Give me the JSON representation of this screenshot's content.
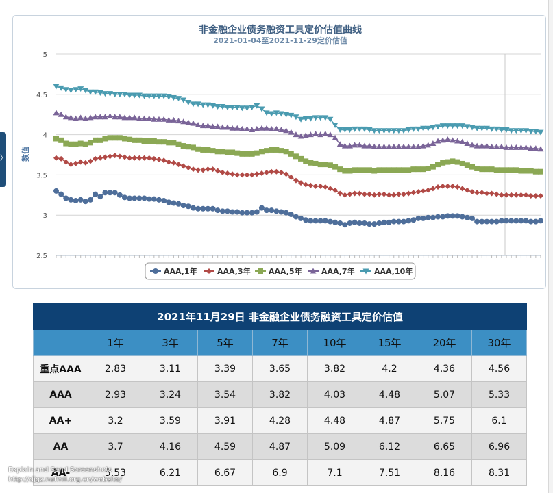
{
  "chart_data": {
    "type": "line",
    "title": "非金融企业债务融资工具定价估值曲线",
    "subtitle": "2021-01-04至2021-11-29定价估值",
    "ylabel": "数值",
    "ylim": [
      2.5,
      5
    ],
    "yticks": [
      "2.5",
      "3",
      "3.5",
      "4",
      "4.5",
      "5"
    ],
    "series": [
      {
        "name": "AAA,1年",
        "color": "#4e6e9a",
        "marker": "circle",
        "values": [
          3.3,
          3.26,
          3.21,
          3.19,
          3.18,
          3.19,
          3.17,
          3.19,
          3.26,
          3.23,
          3.28,
          3.28,
          3.28,
          3.25,
          3.22,
          3.21,
          3.21,
          3.21,
          3.21,
          3.2,
          3.2,
          3.19,
          3.18,
          3.16,
          3.15,
          3.14,
          3.12,
          3.11,
          3.09,
          3.08,
          3.08,
          3.08,
          3.08,
          3.06,
          3.05,
          3.05,
          3.04,
          3.04,
          3.03,
          3.03,
          3.03,
          3.04,
          3.09,
          3.06,
          3.06,
          3.05,
          3.04,
          3.03,
          3.01,
          2.98,
          2.96,
          2.94,
          2.93,
          2.93,
          2.93,
          2.93,
          2.92,
          2.91,
          2.9,
          2.88,
          2.9,
          2.91,
          2.9,
          2.9,
          2.89,
          2.89,
          2.9,
          2.91,
          2.91,
          2.92,
          2.92,
          2.92,
          2.93,
          2.94,
          2.96,
          2.96,
          2.97,
          2.97,
          2.98,
          2.98,
          2.99,
          2.99,
          2.99,
          2.98,
          2.97,
          2.96,
          2.92,
          2.92,
          2.92,
          2.92,
          2.92,
          2.93,
          2.93,
          2.93,
          2.93,
          2.93,
          2.93,
          2.92,
          2.92,
          2.93
        ]
      },
      {
        "name": "AAA,3年",
        "color": "#b14a46",
        "marker": "diamond",
        "values": [
          3.71,
          3.7,
          3.66,
          3.63,
          3.64,
          3.66,
          3.65,
          3.67,
          3.7,
          3.71,
          3.72,
          3.73,
          3.74,
          3.73,
          3.72,
          3.71,
          3.71,
          3.71,
          3.71,
          3.71,
          3.7,
          3.69,
          3.68,
          3.66,
          3.65,
          3.63,
          3.61,
          3.59,
          3.57,
          3.56,
          3.56,
          3.57,
          3.57,
          3.55,
          3.53,
          3.52,
          3.51,
          3.5,
          3.5,
          3.5,
          3.5,
          3.51,
          3.52,
          3.53,
          3.54,
          3.54,
          3.53,
          3.51,
          3.47,
          3.43,
          3.4,
          3.38,
          3.37,
          3.36,
          3.36,
          3.35,
          3.33,
          3.31,
          3.27,
          3.25,
          3.26,
          3.27,
          3.27,
          3.26,
          3.26,
          3.25,
          3.26,
          3.26,
          3.25,
          3.25,
          3.26,
          3.26,
          3.27,
          3.28,
          3.29,
          3.3,
          3.31,
          3.33,
          3.35,
          3.36,
          3.36,
          3.36,
          3.35,
          3.33,
          3.31,
          3.29,
          3.28,
          3.28,
          3.27,
          3.27,
          3.26,
          3.25,
          3.25,
          3.25,
          3.25,
          3.25,
          3.25,
          3.24,
          3.24,
          3.24
        ]
      },
      {
        "name": "AAA,5年",
        "color": "#8ba854",
        "marker": "square",
        "values": [
          3.95,
          3.93,
          3.89,
          3.88,
          3.88,
          3.89,
          3.88,
          3.9,
          3.93,
          3.93,
          3.95,
          3.96,
          3.96,
          3.96,
          3.95,
          3.94,
          3.93,
          3.93,
          3.92,
          3.92,
          3.92,
          3.91,
          3.91,
          3.9,
          3.9,
          3.88,
          3.86,
          3.85,
          3.84,
          3.82,
          3.81,
          3.81,
          3.8,
          3.79,
          3.79,
          3.78,
          3.78,
          3.77,
          3.76,
          3.76,
          3.76,
          3.77,
          3.79,
          3.8,
          3.81,
          3.81,
          3.8,
          3.79,
          3.76,
          3.73,
          3.7,
          3.67,
          3.65,
          3.64,
          3.63,
          3.63,
          3.62,
          3.6,
          3.57,
          3.55,
          3.55,
          3.56,
          3.56,
          3.56,
          3.56,
          3.55,
          3.56,
          3.56,
          3.56,
          3.56,
          3.56,
          3.56,
          3.56,
          3.57,
          3.57,
          3.57,
          3.58,
          3.6,
          3.63,
          3.65,
          3.66,
          3.67,
          3.66,
          3.64,
          3.62,
          3.6,
          3.58,
          3.57,
          3.57,
          3.57,
          3.56,
          3.56,
          3.56,
          3.56,
          3.56,
          3.55,
          3.55,
          3.55,
          3.54,
          3.54
        ]
      },
      {
        "name": "AAA,7年",
        "color": "#7a6498",
        "marker": "triangle-up",
        "values": [
          4.27,
          4.25,
          4.22,
          4.21,
          4.2,
          4.21,
          4.2,
          4.21,
          4.22,
          4.22,
          4.22,
          4.23,
          4.22,
          4.22,
          4.21,
          4.21,
          4.21,
          4.2,
          4.2,
          4.2,
          4.19,
          4.19,
          4.19,
          4.18,
          4.18,
          4.17,
          4.16,
          4.15,
          4.14,
          4.12,
          4.11,
          4.11,
          4.1,
          4.1,
          4.09,
          4.09,
          4.08,
          4.08,
          4.07,
          4.07,
          4.06,
          4.07,
          4.08,
          4.08,
          4.07,
          4.07,
          4.06,
          4.05,
          4.03,
          4.0,
          3.98,
          3.99,
          4.0,
          4.01,
          4.0,
          4.01,
          4.0,
          3.96,
          3.88,
          3.86,
          3.86,
          3.87,
          3.87,
          3.86,
          3.86,
          3.85,
          3.85,
          3.85,
          3.85,
          3.85,
          3.85,
          3.85,
          3.85,
          3.85,
          3.85,
          3.86,
          3.87,
          3.89,
          3.92,
          3.93,
          3.94,
          3.93,
          3.92,
          3.91,
          3.89,
          3.87,
          3.86,
          3.86,
          3.86,
          3.85,
          3.85,
          3.85,
          3.84,
          3.84,
          3.84,
          3.84,
          3.84,
          3.83,
          3.83,
          3.82
        ]
      },
      {
        "name": "AAA,10年",
        "color": "#4a9bb0",
        "marker": "triangle-down",
        "values": [
          4.6,
          4.58,
          4.56,
          4.55,
          4.56,
          4.57,
          4.55,
          4.53,
          4.53,
          4.52,
          4.51,
          4.51,
          4.5,
          4.5,
          4.5,
          4.49,
          4.49,
          4.49,
          4.48,
          4.48,
          4.48,
          4.48,
          4.48,
          4.47,
          4.46,
          4.45,
          4.43,
          4.4,
          4.38,
          4.38,
          4.37,
          4.37,
          4.36,
          4.35,
          4.35,
          4.34,
          4.34,
          4.34,
          4.33,
          4.33,
          4.34,
          4.36,
          4.32,
          4.27,
          4.26,
          4.27,
          4.26,
          4.25,
          4.24,
          4.22,
          4.19,
          4.2,
          4.2,
          4.21,
          4.21,
          4.21,
          4.19,
          4.12,
          4.06,
          4.06,
          4.06,
          4.07,
          4.07,
          4.07,
          4.06,
          4.05,
          4.05,
          4.05,
          4.05,
          4.05,
          4.05,
          4.05,
          4.06,
          4.07,
          4.07,
          4.08,
          4.08,
          4.09,
          4.1,
          4.11,
          4.11,
          4.11,
          4.11,
          4.11,
          4.1,
          4.09,
          4.08,
          4.08,
          4.08,
          4.07,
          4.07,
          4.06,
          4.06,
          4.05,
          4.05,
          4.05,
          4.05,
          4.04,
          4.04,
          4.03
        ]
      }
    ]
  },
  "table": {
    "title": "2021年11月29日 非金融企业债务融资工具定价估值",
    "headers": [
      "",
      "1年",
      "3年",
      "5年",
      "7年",
      "10年",
      "15年",
      "20年",
      "30年"
    ],
    "rows": [
      [
        "重点AAA",
        "2.83",
        "3.11",
        "3.39",
        "3.65",
        "3.82",
        "4.2",
        "4.36",
        "4.56"
      ],
      [
        "AAA",
        "2.93",
        "3.24",
        "3.54",
        "3.82",
        "4.03",
        "4.48",
        "5.07",
        "5.33"
      ],
      [
        "AA+",
        "3.2",
        "3.59",
        "3.91",
        "4.28",
        "4.48",
        "4.87",
        "5.75",
        "6.1"
      ],
      [
        "AA",
        "3.7",
        "4.16",
        "4.59",
        "4.87",
        "5.09",
        "6.12",
        "6.65",
        "6.96"
      ],
      [
        "AA-",
        "5.53",
        "6.21",
        "6.67",
        "6.9",
        "7.1",
        "7.51",
        "8.16",
        "8.31"
      ]
    ]
  },
  "footer": {
    "line1": "Explain and Send Screenshots",
    "line2": "http://djgz.nafmii.org.cn/website/"
  },
  "left_handle_glyph": "〉"
}
